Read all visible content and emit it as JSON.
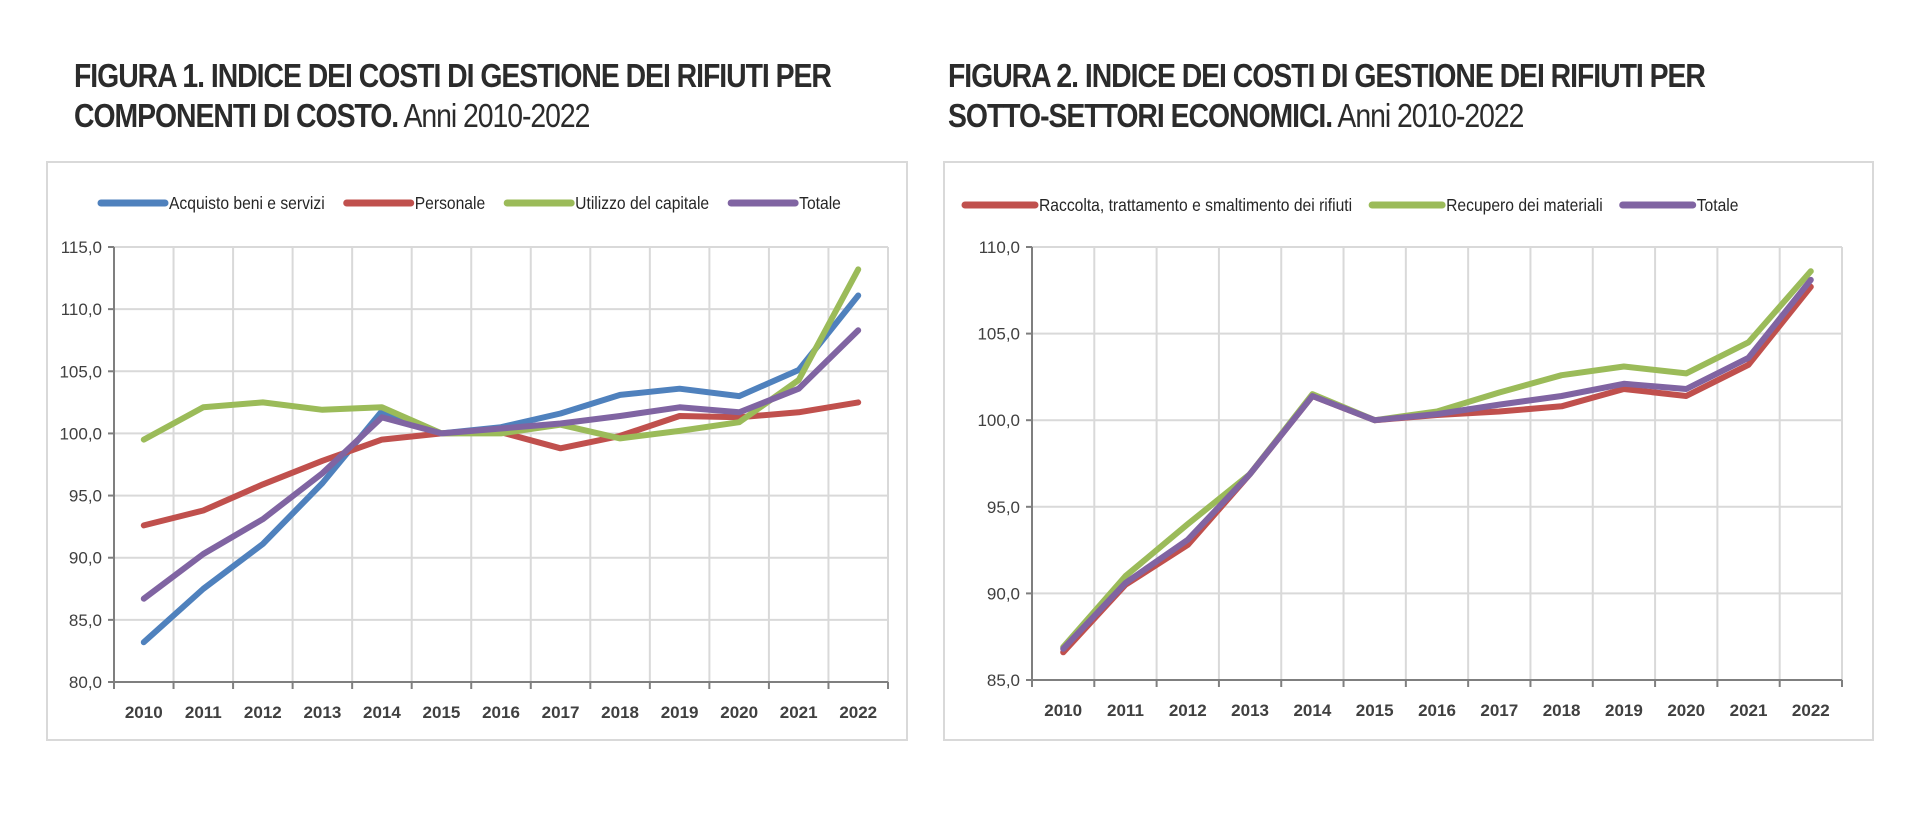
{
  "figures": [
    {
      "title_bold": "FIGURA 1. INDICE DEI COSTI DI GESTIONE DEI RIFIUTI PER",
      "title_bold_line2": "COMPONENTI DI COSTO.",
      "title_normal": " Anni 2010-2022"
    },
    {
      "title_bold": "FIGURA 2.  INDICE DEI COSTI DI GESTIONE DEI RIFIUTI PER",
      "title_bold_line2": "SOTTO-SETTORI ECONOMICI.",
      "title_normal": " Anni 2010-2022"
    }
  ],
  "chart_data": [
    {
      "type": "line",
      "title": "FIGURA 1. INDICE DEI COSTI DI GESTIONE DEI RIFIUTI PER COMPONENTI DI COSTO. Anni 2010-2022",
      "xlabel": "",
      "ylabel": "",
      "categories": [
        "2010",
        "2011",
        "2012",
        "2013",
        "2014",
        "2015",
        "2016",
        "2017",
        "2018",
        "2019",
        "2020",
        "2021",
        "2022"
      ],
      "ylim": [
        80,
        115
      ],
      "yticks": [
        80,
        85,
        90,
        95,
        100,
        105,
        110,
        115
      ],
      "ytick_labels": [
        "80,0",
        "85,0",
        "90,0",
        "95,0",
        "100,0",
        "105,0",
        "110,0",
        "115,0"
      ],
      "grid": true,
      "legend_position": "top",
      "series": [
        {
          "name": "Acquisto beni e servizi",
          "color": "#4f81bd",
          "values": [
            83.2,
            87.5,
            91.1,
            96.0,
            101.8,
            100.0,
            100.5,
            101.6,
            103.1,
            103.6,
            103.0,
            105.1,
            111.1
          ]
        },
        {
          "name": "Personale",
          "color": "#c0504d",
          "values": [
            92.6,
            93.8,
            95.9,
            97.8,
            99.5,
            100.0,
            100.1,
            98.8,
            99.8,
            101.4,
            101.3,
            101.7,
            102.5
          ]
        },
        {
          "name": "Utilizzo del capitale",
          "color": "#9bbb59",
          "values": [
            99.5,
            102.1,
            102.5,
            101.9,
            102.1,
            100.0,
            100.0,
            100.7,
            99.6,
            100.2,
            100.9,
            104.3,
            113.2
          ]
        },
        {
          "name": "Totale",
          "color": "#8064a2",
          "values": [
            86.7,
            90.3,
            93.1,
            96.8,
            101.3,
            100.0,
            100.4,
            100.8,
            101.4,
            102.1,
            101.7,
            103.6,
            108.3
          ]
        }
      ]
    },
    {
      "type": "line",
      "title": "FIGURA 2. INDICE DEI COSTI DI GESTIONE DEI RIFIUTI PER SOTTO-SETTORI ECONOMICI. Anni 2010-2022",
      "xlabel": "",
      "ylabel": "",
      "categories": [
        "2010",
        "2011",
        "2012",
        "2013",
        "2014",
        "2015",
        "2016",
        "2017",
        "2018",
        "2019",
        "2020",
        "2021",
        "2022"
      ],
      "ylim": [
        85,
        110
      ],
      "yticks": [
        85,
        90,
        95,
        100,
        105,
        110
      ],
      "ytick_labels": [
        "85,0",
        "90,0",
        "95,0",
        "100,0",
        "105,0",
        "110,0"
      ],
      "grid": true,
      "legend_position": "top",
      "series": [
        {
          "name": "Raccolta,  trattamento e smaltimento dei rifiuti",
          "color": "#c0504d",
          "values": [
            86.6,
            90.5,
            92.8,
            96.9,
            101.4,
            100.0,
            100.3,
            100.5,
            100.8,
            101.8,
            101.4,
            103.2,
            107.7
          ]
        },
        {
          "name": "Recupero dei materiali",
          "color": "#9bbb59",
          "values": [
            86.9,
            91.0,
            94.0,
            96.9,
            101.5,
            100.0,
            100.5,
            101.6,
            102.6,
            103.1,
            102.7,
            104.5,
            108.6
          ]
        },
        {
          "name": "Totale",
          "color": "#8064a2",
          "values": [
            86.8,
            90.6,
            93.1,
            96.9,
            101.4,
            100.0,
            100.35,
            100.9,
            101.4,
            102.1,
            101.8,
            103.6,
            108.1
          ]
        }
      ]
    }
  ]
}
